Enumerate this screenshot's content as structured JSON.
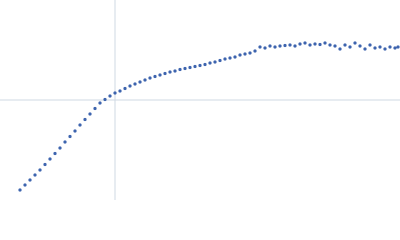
{
  "chart_data": {
    "type": "scatter",
    "color": "#3d64ae",
    "grid": true,
    "xlim": [
      0,
      400
    ],
    "ylim": [
      0,
      200
    ],
    "xticks": [
      115
    ],
    "yticks": [
      100
    ],
    "x": [
      20,
      25,
      30,
      35,
      40,
      45,
      50,
      55,
      60,
      65,
      70,
      75,
      80,
      85,
      90,
      95,
      100,
      105,
      110,
      115,
      120,
      125,
      130,
      135,
      140,
      145,
      150,
      155,
      160,
      165,
      170,
      175,
      180,
      185,
      190,
      195,
      200,
      205,
      210,
      215,
      220,
      225,
      230,
      235,
      240,
      245,
      250,
      255,
      260,
      265,
      270,
      275,
      280,
      285,
      290,
      295,
      300,
      305,
      310,
      315,
      320,
      325,
      330,
      335,
      340,
      345,
      350,
      355,
      360,
      365,
      370,
      375,
      380,
      385,
      390,
      395,
      398
    ],
    "values": [
      10,
      15,
      20,
      25,
      30,
      35.5,
      41,
      46.5,
      52,
      58,
      63.5,
      69,
      75,
      80.5,
      86,
      91.5,
      97,
      100.5,
      104,
      107,
      109,
      111.5,
      114,
      116,
      118,
      120,
      122,
      123.5,
      125,
      126.5,
      128,
      129,
      130.5,
      131.5,
      132.5,
      133.5,
      134.5,
      135.5,
      137,
      138,
      139.5,
      141,
      142,
      143,
      145,
      146,
      147,
      149,
      153,
      152,
      154,
      153,
      154,
      154.5,
      155,
      154,
      156,
      157,
      155,
      156,
      155.5,
      157,
      155,
      154,
      151,
      155,
      153,
      157,
      154,
      151,
      155,
      152,
      153,
      151,
      153,
      152,
      153
    ]
  }
}
